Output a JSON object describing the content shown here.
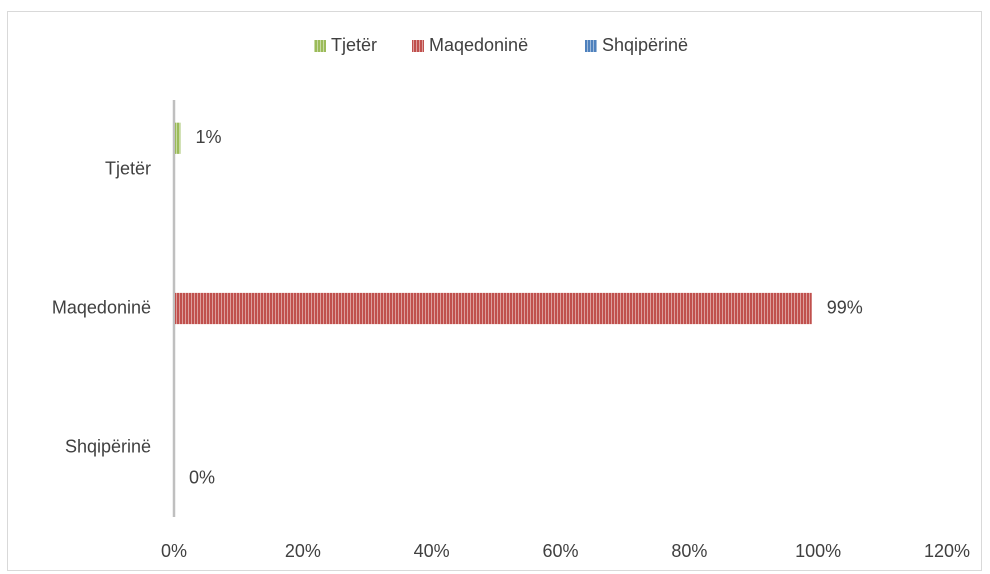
{
  "chart_data": {
    "type": "bar",
    "orientation": "horizontal",
    "categories": [
      "Shqipërinë",
      "Maqedoninë",
      "Tjetër"
    ],
    "series": [
      {
        "name": "Shqipërinë",
        "color": "#4f81bd",
        "values": [
          0,
          null,
          null
        ],
        "labels": [
          "0%",
          "",
          ""
        ]
      },
      {
        "name": "Maqedoninë",
        "color": "#c0504d",
        "values": [
          null,
          99,
          null
        ],
        "labels": [
          "",
          "99%",
          ""
        ]
      },
      {
        "name": "Tjetër",
        "color": "#9bbb59",
        "values": [
          null,
          null,
          1
        ],
        "labels": [
          "",
          "",
          "1%"
        ]
      }
    ],
    "x_ticks": [
      "0%",
      "20%",
      "40%",
      "60%",
      "80%",
      "100%",
      "120%"
    ],
    "xlim": [
      0,
      120
    ],
    "legend": {
      "position": "top",
      "order": [
        "Tjetër",
        "Maqedoninë",
        "Shqipërinë"
      ]
    },
    "grid": false,
    "bar_pattern": "vertical-stripes"
  }
}
